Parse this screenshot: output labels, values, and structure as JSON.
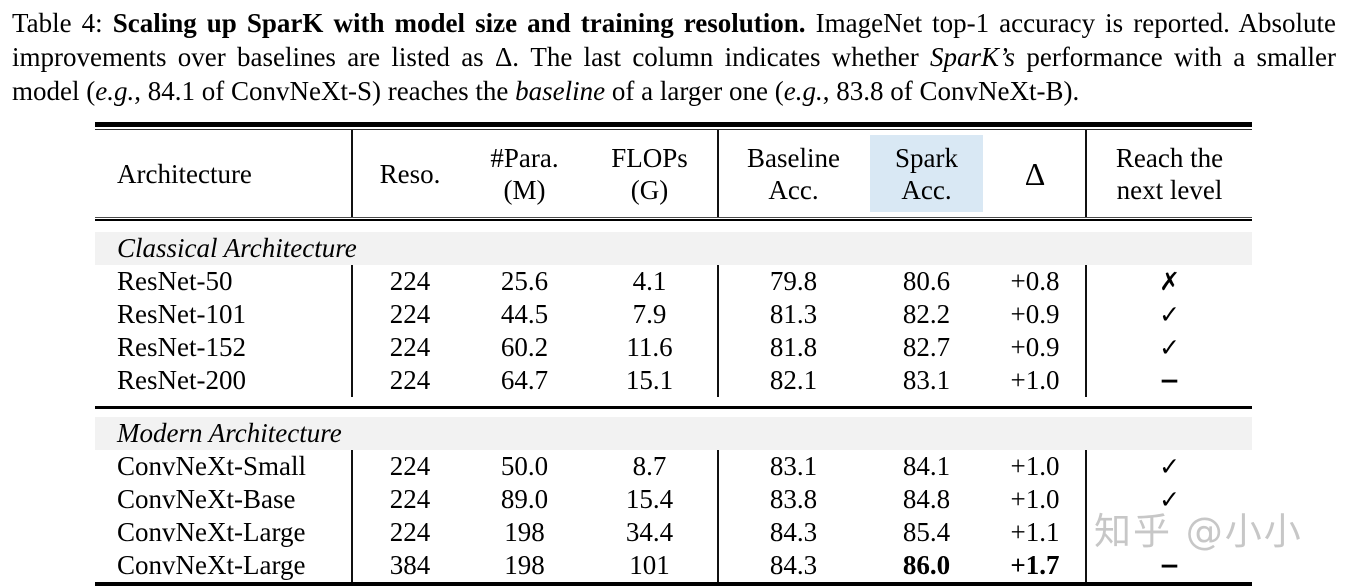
{
  "caption": {
    "label": "Table 4: ",
    "title_bold": "Scaling up SparK with model size and training resolution.",
    "text1": " ImageNet top-1 accuracy is reported. Absolute improvements over baselines are listed as Δ. The last column indicates whether ",
    "spark_italic": "SparK’s",
    "text2": " performance with a smaller model (",
    "eg1": "e.g.",
    "text3": ", 84.1 of ConvNeXt-S) reaches the ",
    "baseline_italic": "baseline",
    "text4": " of a larger one (",
    "eg2": "e.g.",
    "text5": ", 83.8 of ConvNeXt-B)."
  },
  "table": {
    "headers": {
      "architecture": "Architecture",
      "reso": "Reso.",
      "params": "#Para.\n(M)",
      "flops": "FLOPs\n(G)",
      "baseline": "Baseline\nAcc.",
      "spark": "Spark\nAcc.",
      "delta": "Δ",
      "reach": "Reach the\nnext level"
    },
    "sections": [
      {
        "label": "Classical Architecture",
        "rows": [
          {
            "arch": "ResNet-50",
            "reso": "224",
            "params": "25.6",
            "flops": "4.1",
            "baseline": "79.8",
            "spark": "80.6",
            "delta": "+0.8",
            "reach": "✗"
          },
          {
            "arch": "ResNet-101",
            "reso": "224",
            "params": "44.5",
            "flops": "7.9",
            "baseline": "81.3",
            "spark": "82.2",
            "delta": "+0.9",
            "reach": "✓"
          },
          {
            "arch": "ResNet-152",
            "reso": "224",
            "params": "60.2",
            "flops": "11.6",
            "baseline": "81.8",
            "spark": "82.7",
            "delta": "+0.9",
            "reach": "✓"
          },
          {
            "arch": "ResNet-200",
            "reso": "224",
            "params": "64.7",
            "flops": "15.1",
            "baseline": "82.1",
            "spark": "83.1",
            "delta": "+1.0",
            "reach": "−"
          }
        ]
      },
      {
        "label": "Modern Architecture",
        "rows": [
          {
            "arch": "ConvNeXt-Small",
            "reso": "224",
            "params": "50.0",
            "flops": "8.7",
            "baseline": "83.1",
            "spark": "84.1",
            "delta": "+1.0",
            "reach": "✓"
          },
          {
            "arch": "ConvNeXt-Base",
            "reso": "224",
            "params": "89.0",
            "flops": "15.4",
            "baseline": "83.8",
            "spark": "84.8",
            "delta": "+1.0",
            "reach": "✓"
          },
          {
            "arch": "ConvNeXt-Large",
            "reso": "224",
            "params": "198",
            "flops": "34.4",
            "baseline": "84.3",
            "spark": "85.4",
            "delta": "+1.1",
            "reach": ""
          },
          {
            "arch": "ConvNeXt-Large",
            "reso": "384",
            "params": "198",
            "flops": "101",
            "baseline": "84.3",
            "spark": "86.0",
            "delta": "+1.7",
            "reach": "−"
          }
        ]
      }
    ]
  },
  "watermark": {
    "text": "知乎 @小小"
  },
  "colors": {
    "spark_header_highlight": "#d9e8f4",
    "section_band": "#f2f2f2",
    "watermark": "#c7c7c7"
  }
}
